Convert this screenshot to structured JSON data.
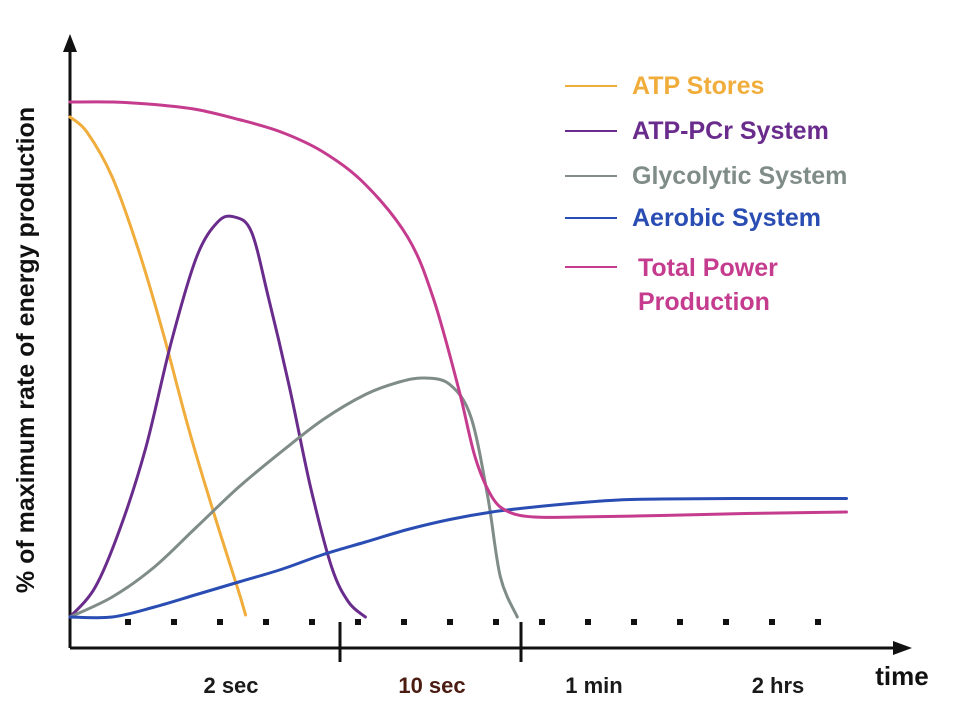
{
  "chart_data": {
    "type": "line",
    "xlabel": "time",
    "ylabel": "% of maximum rate of energy production",
    "x_ticks": [
      "2 sec",
      "10 sec",
      "1 min",
      "2 hrs"
    ],
    "x_ticks_colors": [
      "#1a1a1a",
      "#4a1c12",
      "#1a1a1a",
      "#1a1a1a"
    ],
    "x_range": [
      0,
      100
    ],
    "y_range": [
      0,
      100
    ],
    "grid": false,
    "legend_position": "top-right",
    "series": [
      {
        "name": "ATP Stores",
        "color": "#f0ad3c",
        "points": [
          [
            0,
            100
          ],
          [
            2,
            97
          ],
          [
            5,
            88
          ],
          [
            8,
            74
          ],
          [
            11,
            57
          ],
          [
            14,
            38
          ],
          [
            17,
            21
          ],
          [
            20,
            5
          ],
          [
            20.8,
            0.4
          ]
        ]
      },
      {
        "name": "ATP-PCr System",
        "color": "#6a2c8c",
        "points": [
          [
            0,
            0
          ],
          [
            3,
            6
          ],
          [
            6,
            18
          ],
          [
            9,
            34
          ],
          [
            12,
            55
          ],
          [
            15,
            72
          ],
          [
            17.5,
            79
          ],
          [
            19.5,
            80
          ],
          [
            21.5,
            77
          ],
          [
            23.5,
            64
          ],
          [
            26,
            46
          ],
          [
            28.5,
            26
          ],
          [
            31,
            10
          ],
          [
            33,
            3
          ],
          [
            35,
            0
          ]
        ]
      },
      {
        "name": "Glycolytic System",
        "color": "#7f8c88",
        "points": [
          [
            0,
            0
          ],
          [
            5,
            4
          ],
          [
            10,
            10
          ],
          [
            15,
            18
          ],
          [
            20,
            26
          ],
          [
            25,
            33
          ],
          [
            30,
            39.5
          ],
          [
            35,
            44.5
          ],
          [
            39,
            47
          ],
          [
            42,
            47.8
          ],
          [
            45,
            46.5
          ],
          [
            47.5,
            40
          ],
          [
            49.5,
            24
          ],
          [
            51,
            8
          ],
          [
            53,
            0
          ]
        ]
      },
      {
        "name": "Aerobic System",
        "color": "#2a4db3",
        "points": [
          [
            0,
            0
          ],
          [
            5,
            0
          ],
          [
            10,
            2
          ],
          [
            15,
            4.5
          ],
          [
            20,
            7
          ],
          [
            25,
            9.5
          ],
          [
            30,
            12.5
          ],
          [
            35,
            15
          ],
          [
            40,
            17.5
          ],
          [
            45,
            19.5
          ],
          [
            50,
            21
          ],
          [
            55,
            22
          ],
          [
            60,
            22.8
          ],
          [
            65,
            23.4
          ],
          [
            70,
            23.6
          ],
          [
            80,
            23.7
          ],
          [
            92,
            23.7
          ]
        ]
      },
      {
        "name": "Total Power Production",
        "color": "#c53c8e",
        "points": [
          [
            0,
            103
          ],
          [
            5,
            103
          ],
          [
            10,
            102.5
          ],
          [
            15,
            101.5
          ],
          [
            20,
            99.5
          ],
          [
            25,
            97
          ],
          [
            30,
            93
          ],
          [
            35,
            86.5
          ],
          [
            40,
            76
          ],
          [
            43,
            64
          ],
          [
            46,
            46
          ],
          [
            48,
            32
          ],
          [
            50,
            24
          ],
          [
            52,
            21
          ],
          [
            55,
            20
          ],
          [
            60,
            20
          ],
          [
            70,
            20.3
          ],
          [
            80,
            20.7
          ],
          [
            92,
            21
          ]
        ]
      }
    ]
  }
}
